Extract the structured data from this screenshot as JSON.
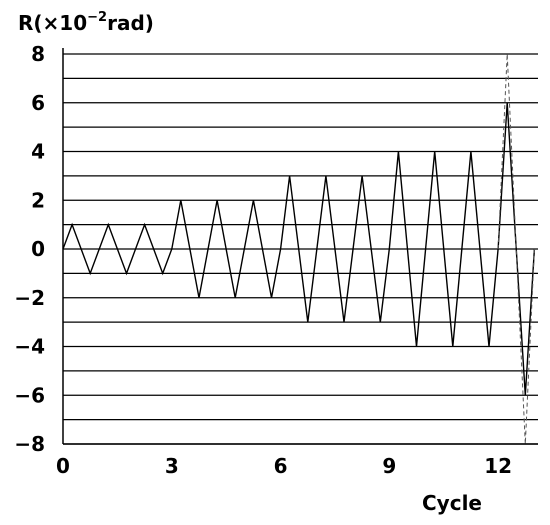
{
  "chart_data": {
    "type": "line",
    "ylabel_prefix": "R(×10",
    "ylabel_exp": "−2",
    "ylabel_suffix": "rad)",
    "xlabel": "Cycle",
    "xlim": [
      0,
      13.1
    ],
    "ylim": [
      -8,
      8
    ],
    "x_ticks": [
      0,
      3,
      6,
      9,
      12
    ],
    "y_ticks": [
      8,
      6,
      4,
      2,
      0,
      -2,
      -4,
      -6,
      -8
    ],
    "y_tick_labels": [
      "8",
      "6",
      "4",
      "2",
      "0",
      "−2",
      "−4",
      "−6",
      "−8"
    ],
    "grid": "horizontal",
    "grid_step": 1,
    "series": [
      {
        "style": "solid",
        "color": "#000000",
        "points": [
          [
            0,
            0
          ],
          [
            0.25,
            1
          ],
          [
            0.75,
            -1
          ],
          [
            1.25,
            1
          ],
          [
            1.75,
            -1
          ],
          [
            2.25,
            1
          ],
          [
            2.75,
            -1
          ],
          [
            3.0,
            0
          ],
          [
            3.25,
            2
          ],
          [
            3.75,
            -2
          ],
          [
            4.25,
            2
          ],
          [
            4.75,
            -2
          ],
          [
            5.25,
            2
          ],
          [
            5.75,
            -2
          ],
          [
            6.0,
            0
          ],
          [
            6.25,
            3
          ],
          [
            6.75,
            -3
          ],
          [
            7.25,
            3
          ],
          [
            7.75,
            -3
          ],
          [
            8.25,
            3
          ],
          [
            8.75,
            -3
          ],
          [
            9.0,
            0
          ],
          [
            9.25,
            4
          ],
          [
            9.75,
            -4
          ],
          [
            10.25,
            4
          ],
          [
            10.75,
            -4
          ],
          [
            11.25,
            4
          ],
          [
            11.75,
            -4
          ],
          [
            12.0,
            0
          ],
          [
            12.25,
            6
          ],
          [
            12.75,
            -6
          ],
          [
            13.0,
            0
          ]
        ]
      },
      {
        "style": "dashed",
        "color": "#555555",
        "points": [
          [
            12.0,
            0
          ],
          [
            12.25,
            8
          ],
          [
            12.75,
            -8
          ],
          [
            13.0,
            0
          ]
        ]
      }
    ]
  }
}
